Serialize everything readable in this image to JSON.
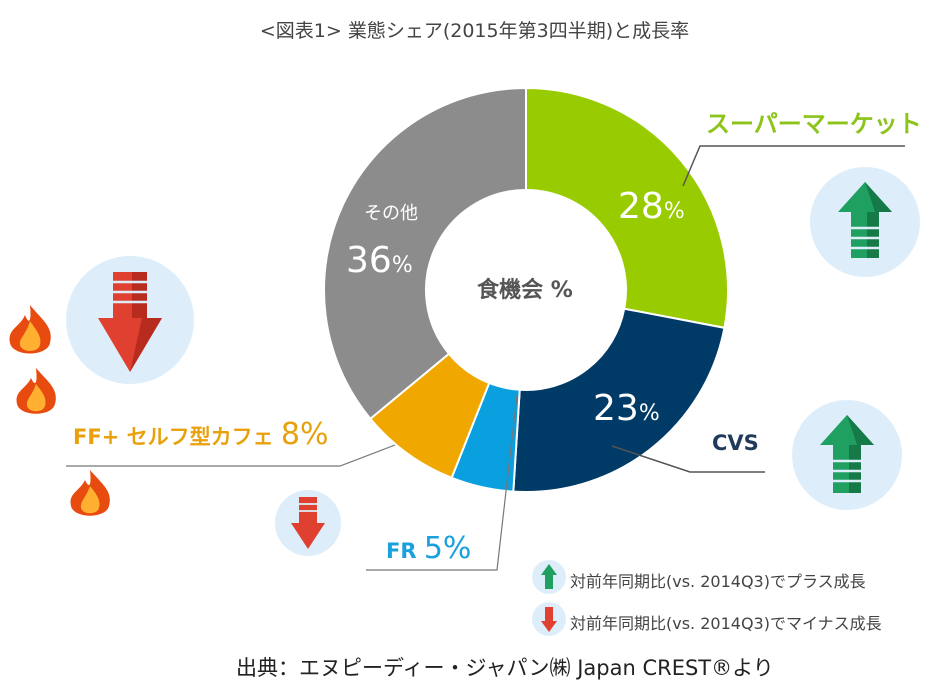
{
  "title": "<図表1> 業態シェア(2015年第3四半期)と成長率",
  "center_label": "食機会 %",
  "other_label": "その他",
  "percent_sign": "%",
  "labels": {
    "supermarket": "スーパーマーケット",
    "cvs": "CVS",
    "fr": "FR",
    "ff": "FF+ セルフ型カフェ"
  },
  "legend": {
    "plus": "対前年同期比(vs. 2014Q3)でプラス成長",
    "minus": "対前年同期比(vs. 2014Q3)でマイナス成長"
  },
  "source": "出典：エヌピーディー・ジャパン㈱ Japan CREST®より",
  "colors": {
    "supermarket": "#99cc00",
    "cvs": "#003a66",
    "fr": "#0aa0e0",
    "ff": "#f0a800",
    "other": "#8c8c8c",
    "up_arrow": "#1fa060",
    "down_arrow": "#e04030",
    "circle_bg": "#ddeefa"
  },
  "chart_data": {
    "type": "pie",
    "donut": true,
    "title": "<図表1> 業態シェア(2015年第3四半期)と成長率",
    "categories": [
      "スーパーマーケット",
      "CVS",
      "FR",
      "FF+ セルフ型カフェ",
      "その他"
    ],
    "values": [
      28,
      23,
      5,
      8,
      36
    ],
    "growth": [
      "plus",
      "plus",
      "minus",
      "minus",
      "none"
    ],
    "unit": "%"
  }
}
